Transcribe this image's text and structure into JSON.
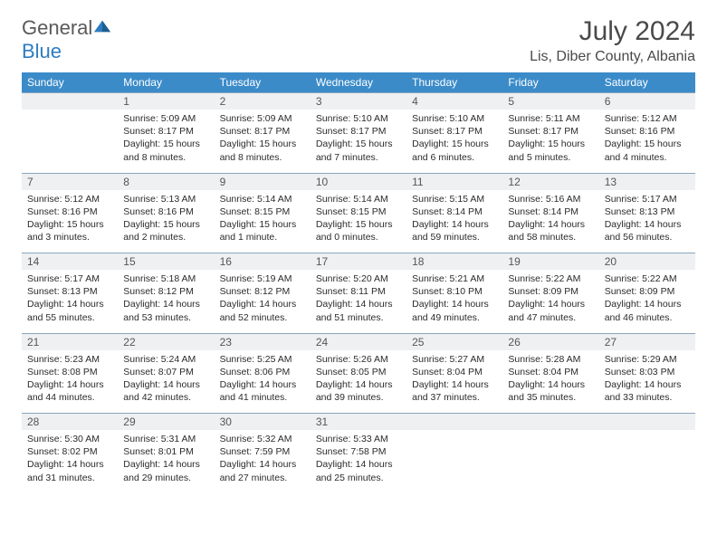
{
  "logo": {
    "text1": "General",
    "text2": "Blue"
  },
  "title": "July 2024",
  "location": "Lis, Diber County, Albania",
  "colors": {
    "header_bg": "#3b8bc9",
    "header_text": "#ffffff",
    "daynum_bg": "#eef0f2",
    "row_divider": "#8aa6bd",
    "body_text": "#2b2b2b",
    "title_text": "#4a4a4a"
  },
  "day_headers": [
    "Sunday",
    "Monday",
    "Tuesday",
    "Wednesday",
    "Thursday",
    "Friday",
    "Saturday"
  ],
  "weeks": [
    {
      "nums": [
        "",
        "1",
        "2",
        "3",
        "4",
        "5",
        "6"
      ],
      "cells": [
        {
          "sunrise": "",
          "sunset": "",
          "daylight": ""
        },
        {
          "sunrise": "Sunrise: 5:09 AM",
          "sunset": "Sunset: 8:17 PM",
          "daylight": "Daylight: 15 hours and 8 minutes."
        },
        {
          "sunrise": "Sunrise: 5:09 AM",
          "sunset": "Sunset: 8:17 PM",
          "daylight": "Daylight: 15 hours and 8 minutes."
        },
        {
          "sunrise": "Sunrise: 5:10 AM",
          "sunset": "Sunset: 8:17 PM",
          "daylight": "Daylight: 15 hours and 7 minutes."
        },
        {
          "sunrise": "Sunrise: 5:10 AM",
          "sunset": "Sunset: 8:17 PM",
          "daylight": "Daylight: 15 hours and 6 minutes."
        },
        {
          "sunrise": "Sunrise: 5:11 AM",
          "sunset": "Sunset: 8:17 PM",
          "daylight": "Daylight: 15 hours and 5 minutes."
        },
        {
          "sunrise": "Sunrise: 5:12 AM",
          "sunset": "Sunset: 8:16 PM",
          "daylight": "Daylight: 15 hours and 4 minutes."
        }
      ]
    },
    {
      "nums": [
        "7",
        "8",
        "9",
        "10",
        "11",
        "12",
        "13"
      ],
      "cells": [
        {
          "sunrise": "Sunrise: 5:12 AM",
          "sunset": "Sunset: 8:16 PM",
          "daylight": "Daylight: 15 hours and 3 minutes."
        },
        {
          "sunrise": "Sunrise: 5:13 AM",
          "sunset": "Sunset: 8:16 PM",
          "daylight": "Daylight: 15 hours and 2 minutes."
        },
        {
          "sunrise": "Sunrise: 5:14 AM",
          "sunset": "Sunset: 8:15 PM",
          "daylight": "Daylight: 15 hours and 1 minute."
        },
        {
          "sunrise": "Sunrise: 5:14 AM",
          "sunset": "Sunset: 8:15 PM",
          "daylight": "Daylight: 15 hours and 0 minutes."
        },
        {
          "sunrise": "Sunrise: 5:15 AM",
          "sunset": "Sunset: 8:14 PM",
          "daylight": "Daylight: 14 hours and 59 minutes."
        },
        {
          "sunrise": "Sunrise: 5:16 AM",
          "sunset": "Sunset: 8:14 PM",
          "daylight": "Daylight: 14 hours and 58 minutes."
        },
        {
          "sunrise": "Sunrise: 5:17 AM",
          "sunset": "Sunset: 8:13 PM",
          "daylight": "Daylight: 14 hours and 56 minutes."
        }
      ]
    },
    {
      "nums": [
        "14",
        "15",
        "16",
        "17",
        "18",
        "19",
        "20"
      ],
      "cells": [
        {
          "sunrise": "Sunrise: 5:17 AM",
          "sunset": "Sunset: 8:13 PM",
          "daylight": "Daylight: 14 hours and 55 minutes."
        },
        {
          "sunrise": "Sunrise: 5:18 AM",
          "sunset": "Sunset: 8:12 PM",
          "daylight": "Daylight: 14 hours and 53 minutes."
        },
        {
          "sunrise": "Sunrise: 5:19 AM",
          "sunset": "Sunset: 8:12 PM",
          "daylight": "Daylight: 14 hours and 52 minutes."
        },
        {
          "sunrise": "Sunrise: 5:20 AM",
          "sunset": "Sunset: 8:11 PM",
          "daylight": "Daylight: 14 hours and 51 minutes."
        },
        {
          "sunrise": "Sunrise: 5:21 AM",
          "sunset": "Sunset: 8:10 PM",
          "daylight": "Daylight: 14 hours and 49 minutes."
        },
        {
          "sunrise": "Sunrise: 5:22 AM",
          "sunset": "Sunset: 8:09 PM",
          "daylight": "Daylight: 14 hours and 47 minutes."
        },
        {
          "sunrise": "Sunrise: 5:22 AM",
          "sunset": "Sunset: 8:09 PM",
          "daylight": "Daylight: 14 hours and 46 minutes."
        }
      ]
    },
    {
      "nums": [
        "21",
        "22",
        "23",
        "24",
        "25",
        "26",
        "27"
      ],
      "cells": [
        {
          "sunrise": "Sunrise: 5:23 AM",
          "sunset": "Sunset: 8:08 PM",
          "daylight": "Daylight: 14 hours and 44 minutes."
        },
        {
          "sunrise": "Sunrise: 5:24 AM",
          "sunset": "Sunset: 8:07 PM",
          "daylight": "Daylight: 14 hours and 42 minutes."
        },
        {
          "sunrise": "Sunrise: 5:25 AM",
          "sunset": "Sunset: 8:06 PM",
          "daylight": "Daylight: 14 hours and 41 minutes."
        },
        {
          "sunrise": "Sunrise: 5:26 AM",
          "sunset": "Sunset: 8:05 PM",
          "daylight": "Daylight: 14 hours and 39 minutes."
        },
        {
          "sunrise": "Sunrise: 5:27 AM",
          "sunset": "Sunset: 8:04 PM",
          "daylight": "Daylight: 14 hours and 37 minutes."
        },
        {
          "sunrise": "Sunrise: 5:28 AM",
          "sunset": "Sunset: 8:04 PM",
          "daylight": "Daylight: 14 hours and 35 minutes."
        },
        {
          "sunrise": "Sunrise: 5:29 AM",
          "sunset": "Sunset: 8:03 PM",
          "daylight": "Daylight: 14 hours and 33 minutes."
        }
      ]
    },
    {
      "nums": [
        "28",
        "29",
        "30",
        "31",
        "",
        "",
        ""
      ],
      "cells": [
        {
          "sunrise": "Sunrise: 5:30 AM",
          "sunset": "Sunset: 8:02 PM",
          "daylight": "Daylight: 14 hours and 31 minutes."
        },
        {
          "sunrise": "Sunrise: 5:31 AM",
          "sunset": "Sunset: 8:01 PM",
          "daylight": "Daylight: 14 hours and 29 minutes."
        },
        {
          "sunrise": "Sunrise: 5:32 AM",
          "sunset": "Sunset: 7:59 PM",
          "daylight": "Daylight: 14 hours and 27 minutes."
        },
        {
          "sunrise": "Sunrise: 5:33 AM",
          "sunset": "Sunset: 7:58 PM",
          "daylight": "Daylight: 14 hours and 25 minutes."
        },
        {
          "sunrise": "",
          "sunset": "",
          "daylight": ""
        },
        {
          "sunrise": "",
          "sunset": "",
          "daylight": ""
        },
        {
          "sunrise": "",
          "sunset": "",
          "daylight": ""
        }
      ]
    }
  ]
}
